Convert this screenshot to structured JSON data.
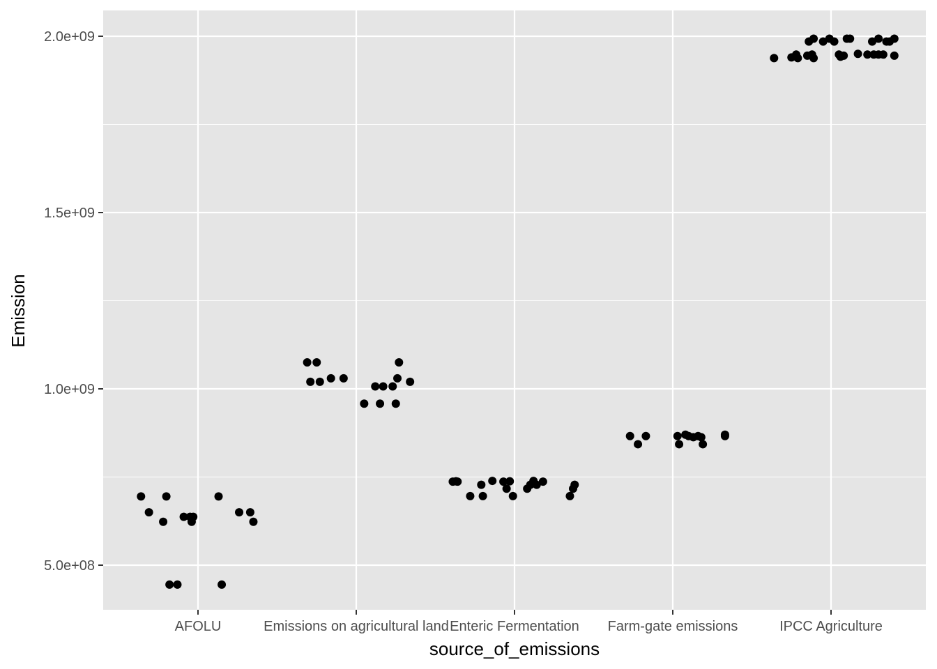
{
  "chart_data": {
    "type": "scatter",
    "title": "",
    "xlabel": "source_of_emissions",
    "ylabel": "Emission",
    "categories": [
      "AFOLU",
      "Emissions on agricultural land",
      "Enteric Fermentation",
      "Farm-gate emissions",
      "IPCC Agriculture"
    ],
    "ylim": [
      375000000,
      2075000000
    ],
    "y_ticks": [
      500000000,
      1000000000,
      1500000000,
      2000000000
    ],
    "y_tick_labels": [
      "5.0e+08",
      "1.0e+09",
      "1.5e+09",
      "2.0e+09"
    ],
    "grid": true,
    "colors": {
      "panel": "#e5e5e5",
      "grid": "#ffffff",
      "point": "#000000",
      "tick_text": "#4d4d4d"
    },
    "points": [
      {
        "x": 0.64,
        "y": 695000000
      },
      {
        "x": 0.69,
        "y": 650000000
      },
      {
        "x": 0.78,
        "y": 623000000
      },
      {
        "x": 0.8,
        "y": 695000000
      },
      {
        "x": 0.82,
        "y": 445000000
      },
      {
        "x": 0.87,
        "y": 445000000
      },
      {
        "x": 0.91,
        "y": 637000000
      },
      {
        "x": 0.95,
        "y": 637000000
      },
      {
        "x": 0.96,
        "y": 623000000
      },
      {
        "x": 0.97,
        "y": 637000000
      },
      {
        "x": 1.13,
        "y": 695000000
      },
      {
        "x": 1.15,
        "y": 445000000
      },
      {
        "x": 1.26,
        "y": 650000000
      },
      {
        "x": 1.33,
        "y": 650000000
      },
      {
        "x": 1.35,
        "y": 623000000
      },
      {
        "x": 1.69,
        "y": 1075000000
      },
      {
        "x": 1.71,
        "y": 1020000000
      },
      {
        "x": 1.75,
        "y": 1075000000
      },
      {
        "x": 1.77,
        "y": 1020000000
      },
      {
        "x": 1.84,
        "y": 1030000000
      },
      {
        "x": 1.92,
        "y": 1030000000
      },
      {
        "x": 2.05,
        "y": 958000000
      },
      {
        "x": 2.12,
        "y": 1007000000
      },
      {
        "x": 2.15,
        "y": 958000000
      },
      {
        "x": 2.17,
        "y": 1007000000
      },
      {
        "x": 2.23,
        "y": 1007000000
      },
      {
        "x": 2.25,
        "y": 958000000
      },
      {
        "x": 2.26,
        "y": 1030000000
      },
      {
        "x": 2.27,
        "y": 1075000000
      },
      {
        "x": 2.34,
        "y": 1020000000
      },
      {
        "x": 2.61,
        "y": 737000000
      },
      {
        "x": 2.63,
        "y": 738000000
      },
      {
        "x": 2.64,
        "y": 737000000
      },
      {
        "x": 2.72,
        "y": 696000000
      },
      {
        "x": 2.79,
        "y": 728000000
      },
      {
        "x": 2.8,
        "y": 696000000
      },
      {
        "x": 2.86,
        "y": 739000000
      },
      {
        "x": 2.93,
        "y": 737000000
      },
      {
        "x": 2.95,
        "y": 717000000
      },
      {
        "x": 2.97,
        "y": 738000000
      },
      {
        "x": 2.99,
        "y": 696000000
      },
      {
        "x": 3.08,
        "y": 717000000
      },
      {
        "x": 3.1,
        "y": 728000000
      },
      {
        "x": 3.12,
        "y": 739000000
      },
      {
        "x": 3.14,
        "y": 728000000
      },
      {
        "x": 3.18,
        "y": 737000000
      },
      {
        "x": 3.35,
        "y": 696000000
      },
      {
        "x": 3.37,
        "y": 717000000
      },
      {
        "x": 3.38,
        "y": 728000000
      },
      {
        "x": 3.73,
        "y": 866000000
      },
      {
        "x": 3.78,
        "y": 843000000
      },
      {
        "x": 3.83,
        "y": 866000000
      },
      {
        "x": 4.03,
        "y": 866000000
      },
      {
        "x": 4.04,
        "y": 843000000
      },
      {
        "x": 4.08,
        "y": 870000000
      },
      {
        "x": 4.1,
        "y": 866000000
      },
      {
        "x": 4.13,
        "y": 863000000
      },
      {
        "x": 4.16,
        "y": 866000000
      },
      {
        "x": 4.18,
        "y": 863000000
      },
      {
        "x": 4.19,
        "y": 843000000
      },
      {
        "x": 4.33,
        "y": 870000000
      },
      {
        "x": 4.33,
        "y": 866000000
      },
      {
        "x": 4.64,
        "y": 1938000000
      },
      {
        "x": 4.75,
        "y": 1940000000
      },
      {
        "x": 4.78,
        "y": 1948000000
      },
      {
        "x": 4.79,
        "y": 1938000000
      },
      {
        "x": 4.85,
        "y": 1945000000
      },
      {
        "x": 4.86,
        "y": 1985000000
      },
      {
        "x": 4.88,
        "y": 1948000000
      },
      {
        "x": 4.89,
        "y": 1993000000
      },
      {
        "x": 4.89,
        "y": 1938000000
      },
      {
        "x": 4.95,
        "y": 1985000000
      },
      {
        "x": 4.99,
        "y": 1993000000
      },
      {
        "x": 5.02,
        "y": 1985000000
      },
      {
        "x": 5.05,
        "y": 1948000000
      },
      {
        "x": 5.06,
        "y": 1942000000
      },
      {
        "x": 5.08,
        "y": 1945000000
      },
      {
        "x": 5.1,
        "y": 1993000000
      },
      {
        "x": 5.12,
        "y": 1993000000
      },
      {
        "x": 5.17,
        "y": 1950000000
      },
      {
        "x": 5.23,
        "y": 1948000000
      },
      {
        "x": 5.26,
        "y": 1985000000
      },
      {
        "x": 5.27,
        "y": 1948000000
      },
      {
        "x": 5.3,
        "y": 1993000000
      },
      {
        "x": 5.3,
        "y": 1948000000
      },
      {
        "x": 5.33,
        "y": 1948000000
      },
      {
        "x": 5.35,
        "y": 1985000000
      },
      {
        "x": 5.37,
        "y": 1985000000
      },
      {
        "x": 5.4,
        "y": 1993000000
      },
      {
        "x": 5.4,
        "y": 1945000000
      }
    ]
  }
}
